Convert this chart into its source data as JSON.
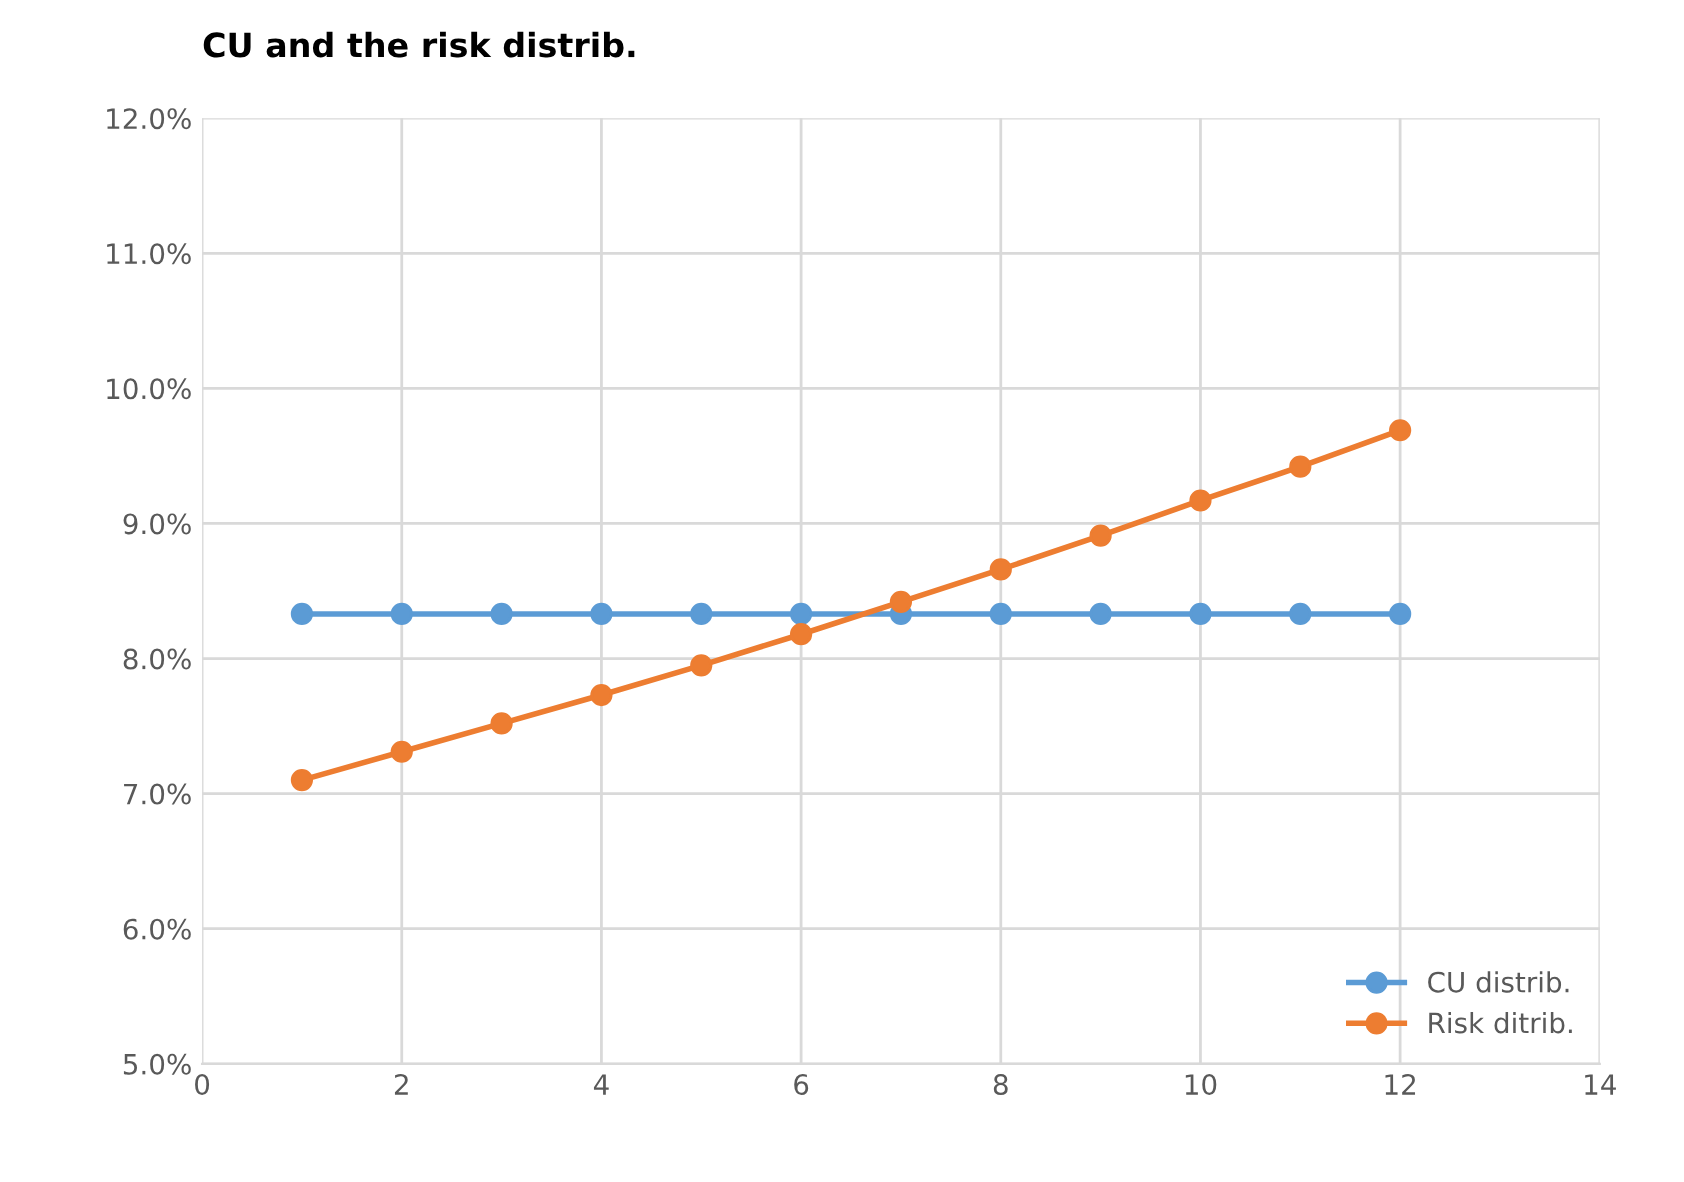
{
  "chart_data": {
    "type": "line",
    "title": "CU and the risk distrib.",
    "x": [
      1,
      2,
      3,
      4,
      5,
      6,
      7,
      8,
      9,
      10,
      11,
      12
    ],
    "series": [
      {
        "name": "CU distrib.",
        "color": "#5b9bd5",
        "values": [
          8.33,
          8.33,
          8.33,
          8.33,
          8.33,
          8.33,
          8.33,
          8.33,
          8.33,
          8.33,
          8.33,
          8.33
        ]
      },
      {
        "name": "Risk ditrib.",
        "color": "#ed7d31",
        "values": [
          7.1,
          7.31,
          7.52,
          7.73,
          7.95,
          8.18,
          8.42,
          8.66,
          8.91,
          9.17,
          9.42,
          9.69
        ]
      }
    ],
    "xlim": [
      0,
      14
    ],
    "xticks": [
      0,
      2,
      4,
      6,
      8,
      10,
      12,
      14
    ],
    "ylim": [
      5,
      12
    ],
    "yticks": [
      {
        "value": 5,
        "label": "5.0%"
      },
      {
        "value": 6,
        "label": "6.0%"
      },
      {
        "value": 7,
        "label": "7.0%"
      },
      {
        "value": 8,
        "label": "8.0%"
      },
      {
        "value": 9,
        "label": "9.0%"
      },
      {
        "value": 10,
        "label": "10.0%"
      },
      {
        "value": 11,
        "label": "11.0%"
      },
      {
        "value": 12,
        "label": "12.0%"
      }
    ],
    "grid": true,
    "legend": "lower right",
    "marker": "circle",
    "line_style": "solid"
  }
}
